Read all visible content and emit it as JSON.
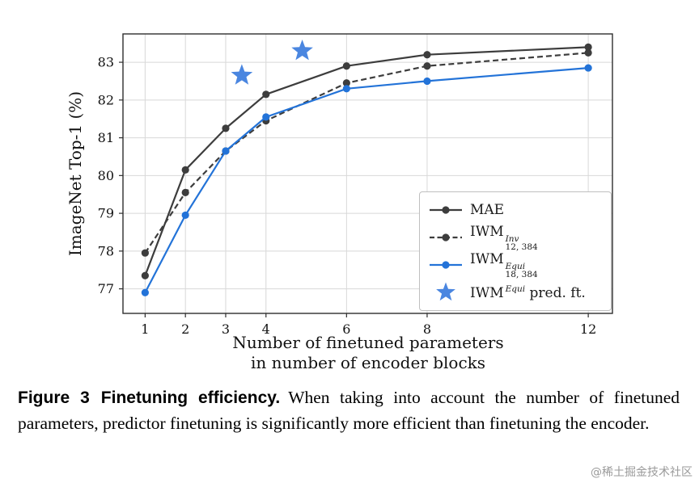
{
  "watermark": "@稀土掘金技术社区",
  "caption": {
    "label": "Figure 3",
    "title": "Finetuning efficiency.",
    "body": "When taking into account the number of finetuned parameters, predictor finetuning is significantly more efficient than finetuning the encoder."
  },
  "chart_data": {
    "type": "line",
    "ylabel": "ImageNet Top-1 (%)",
    "xlabel_line1": "Number of finetuned parameters",
    "xlabel_line2": "in number of encoder blocks",
    "x_ticks": [
      1,
      2,
      3,
      4,
      6,
      8,
      12
    ],
    "y_ticks": [
      77,
      78,
      79,
      80,
      81,
      82,
      83
    ],
    "xlim": [
      0.45,
      12.6
    ],
    "ylim": [
      76.35,
      83.75
    ],
    "grid": true,
    "legend_position": "lower right",
    "series": [
      {
        "name": "MAE",
        "x": [
          1,
          2,
          3,
          4,
          6,
          8,
          12
        ],
        "values": [
          77.35,
          80.15,
          81.25,
          82.15,
          82.9,
          83.2,
          83.4
        ],
        "color": "#3d3d3d",
        "dash": "solid",
        "marker": "circle"
      },
      {
        "name": "IWM",
        "name_sup": "Inv",
        "name_sub": "12, 384",
        "x": [
          1,
          2,
          3,
          4,
          6,
          8,
          12
        ],
        "values": [
          77.95,
          79.55,
          80.65,
          81.45,
          82.45,
          82.9,
          83.25
        ],
        "color": "#3d3d3d",
        "dash": "dashed",
        "marker": "circle"
      },
      {
        "name": "IWM",
        "name_sup": "Equi",
        "name_sub": "18, 384",
        "x": [
          1,
          2,
          3,
          4,
          6,
          8,
          12
        ],
        "values": [
          76.9,
          78.95,
          80.65,
          81.55,
          82.3,
          82.5,
          82.85
        ],
        "color": "#2373d8",
        "dash": "solid",
        "marker": "circle"
      },
      {
        "name": "IWM",
        "name_sup": "Equi",
        "name_suffix": " pred. ft.",
        "x": [
          3.4,
          4.9
        ],
        "values": [
          82.65,
          83.3
        ],
        "color": "#4a86e0",
        "dash": "none",
        "marker": "star"
      }
    ]
  }
}
